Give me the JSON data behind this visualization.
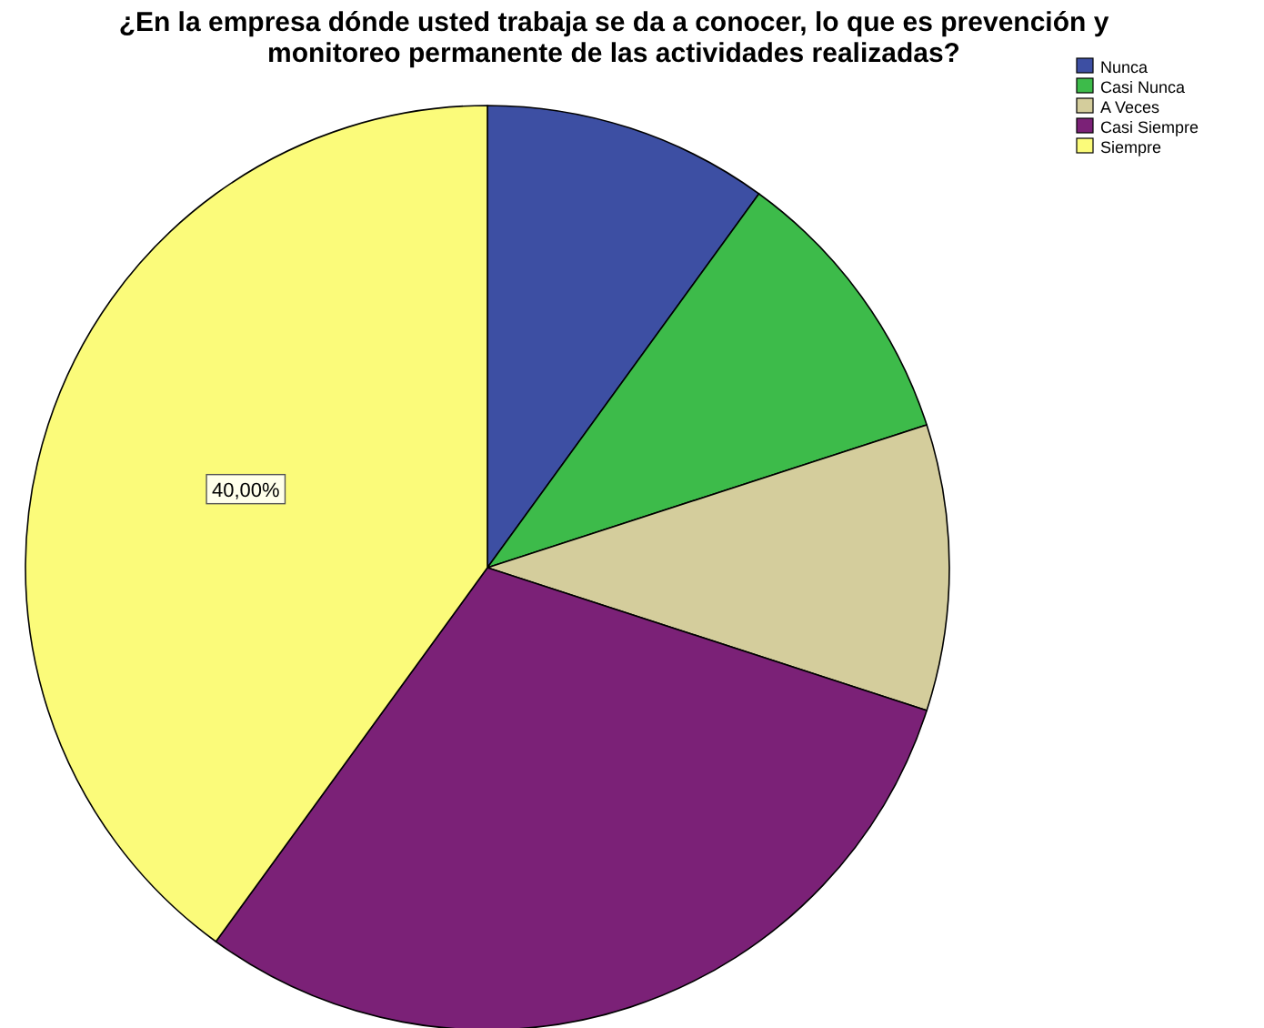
{
  "chart_data": {
    "type": "pie",
    "title": "¿En la empresa dónde usted trabaja se da a conocer, lo que es prevención y monitoreo permanente de las actividades realizadas?",
    "categories": [
      "Nunca",
      "Casi Nunca",
      "A Veces",
      "Casi Siempre",
      "Siempre"
    ],
    "values": [
      10,
      10,
      10,
      30,
      40
    ],
    "colors": [
      "#3d4fa3",
      "#3dbb4a",
      "#d4cd9c",
      "#7b2177",
      "#fbfb7a"
    ],
    "value_labels": [
      null,
      null,
      null,
      null,
      "40,00%"
    ],
    "legend": "top right"
  }
}
